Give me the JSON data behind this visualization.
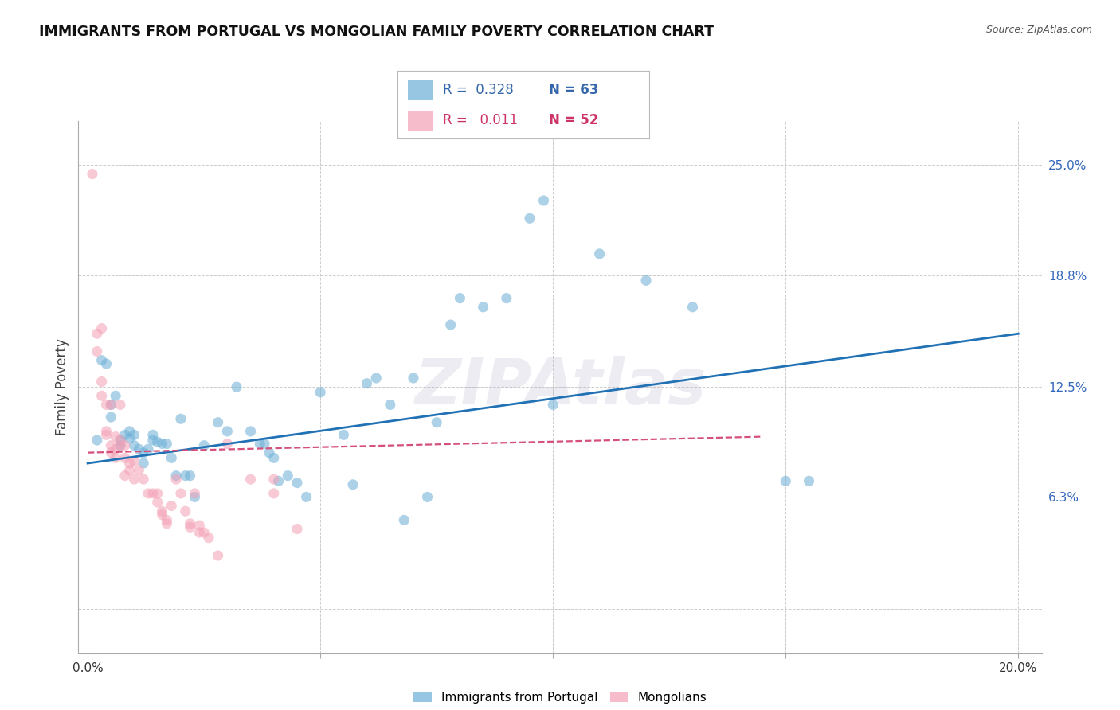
{
  "title": "IMMIGRANTS FROM PORTUGAL VS MONGOLIAN FAMILY POVERTY CORRELATION CHART",
  "source": "Source: ZipAtlas.com",
  "ylabel": "Family Poverty",
  "y_ticks": [
    0.0,
    0.063,
    0.125,
    0.188,
    0.25
  ],
  "y_tick_labels_right": [
    "",
    "6.3%",
    "12.5%",
    "18.8%",
    "25.0%"
  ],
  "x_ticks": [
    0.0,
    0.05,
    0.1,
    0.15,
    0.2
  ],
  "x_tick_labels": [
    "0.0%",
    "",
    "",
    "",
    "20.0%"
  ],
  "xlim": [
    -0.002,
    0.205
  ],
  "ylim": [
    -0.025,
    0.275
  ],
  "blue_label": "Immigrants from Portugal",
  "pink_label": "Mongolians",
  "blue_R": "0.328",
  "blue_N": "63",
  "pink_R": "0.011",
  "pink_N": "52",
  "blue_color": "#6baed6",
  "pink_color": "#f4a0b5",
  "blue_line_color": "#2171b5",
  "pink_line_color": "#d4507a",
  "legend_R_color_blue": "#3366aa",
  "legend_R_color_pink": "#cc3366",
  "blue_scatter": [
    [
      0.002,
      0.095
    ],
    [
      0.003,
      0.14
    ],
    [
      0.004,
      0.138
    ],
    [
      0.005,
      0.108
    ],
    [
      0.005,
      0.115
    ],
    [
      0.006,
      0.12
    ],
    [
      0.007,
      0.092
    ],
    [
      0.007,
      0.095
    ],
    [
      0.008,
      0.098
    ],
    [
      0.009,
      0.096
    ],
    [
      0.009,
      0.1
    ],
    [
      0.01,
      0.092
    ],
    [
      0.01,
      0.098
    ],
    [
      0.011,
      0.09
    ],
    [
      0.012,
      0.088
    ],
    [
      0.012,
      0.082
    ],
    [
      0.013,
      0.09
    ],
    [
      0.014,
      0.095
    ],
    [
      0.014,
      0.098
    ],
    [
      0.015,
      0.094
    ],
    [
      0.016,
      0.093
    ],
    [
      0.017,
      0.093
    ],
    [
      0.018,
      0.085
    ],
    [
      0.019,
      0.075
    ],
    [
      0.02,
      0.107
    ],
    [
      0.021,
      0.075
    ],
    [
      0.022,
      0.075
    ],
    [
      0.023,
      0.063
    ],
    [
      0.025,
      0.092
    ],
    [
      0.028,
      0.105
    ],
    [
      0.03,
      0.1
    ],
    [
      0.032,
      0.125
    ],
    [
      0.035,
      0.1
    ],
    [
      0.037,
      0.093
    ],
    [
      0.038,
      0.093
    ],
    [
      0.039,
      0.088
    ],
    [
      0.04,
      0.085
    ],
    [
      0.041,
      0.072
    ],
    [
      0.043,
      0.075
    ],
    [
      0.045,
      0.071
    ],
    [
      0.047,
      0.063
    ],
    [
      0.05,
      0.122
    ],
    [
      0.055,
      0.098
    ],
    [
      0.057,
      0.07
    ],
    [
      0.06,
      0.127
    ],
    [
      0.062,
      0.13
    ],
    [
      0.065,
      0.115
    ],
    [
      0.068,
      0.05
    ],
    [
      0.07,
      0.13
    ],
    [
      0.073,
      0.063
    ],
    [
      0.075,
      0.105
    ],
    [
      0.078,
      0.16
    ],
    [
      0.08,
      0.175
    ],
    [
      0.085,
      0.17
    ],
    [
      0.09,
      0.175
    ],
    [
      0.095,
      0.22
    ],
    [
      0.098,
      0.23
    ],
    [
      0.1,
      0.115
    ],
    [
      0.11,
      0.2
    ],
    [
      0.12,
      0.185
    ],
    [
      0.13,
      0.17
    ],
    [
      0.15,
      0.072
    ],
    [
      0.155,
      0.072
    ]
  ],
  "pink_scatter": [
    [
      0.001,
      0.245
    ],
    [
      0.002,
      0.155
    ],
    [
      0.002,
      0.145
    ],
    [
      0.003,
      0.158
    ],
    [
      0.003,
      0.128
    ],
    [
      0.003,
      0.12
    ],
    [
      0.004,
      0.115
    ],
    [
      0.004,
      0.1
    ],
    [
      0.004,
      0.098
    ],
    [
      0.005,
      0.115
    ],
    [
      0.005,
      0.092
    ],
    [
      0.005,
      0.088
    ],
    [
      0.006,
      0.097
    ],
    [
      0.006,
      0.09
    ],
    [
      0.006,
      0.085
    ],
    [
      0.007,
      0.095
    ],
    [
      0.007,
      0.092
    ],
    [
      0.007,
      0.115
    ],
    [
      0.008,
      0.092
    ],
    [
      0.008,
      0.085
    ],
    [
      0.008,
      0.075
    ],
    [
      0.009,
      0.082
    ],
    [
      0.009,
      0.078
    ],
    [
      0.01,
      0.073
    ],
    [
      0.01,
      0.083
    ],
    [
      0.011,
      0.078
    ],
    [
      0.012,
      0.073
    ],
    [
      0.013,
      0.065
    ],
    [
      0.014,
      0.065
    ],
    [
      0.015,
      0.065
    ],
    [
      0.015,
      0.06
    ],
    [
      0.016,
      0.055
    ],
    [
      0.016,
      0.053
    ],
    [
      0.017,
      0.05
    ],
    [
      0.017,
      0.048
    ],
    [
      0.018,
      0.058
    ],
    [
      0.019,
      0.073
    ],
    [
      0.02,
      0.065
    ],
    [
      0.021,
      0.055
    ],
    [
      0.022,
      0.048
    ],
    [
      0.022,
      0.046
    ],
    [
      0.023,
      0.065
    ],
    [
      0.024,
      0.047
    ],
    [
      0.024,
      0.043
    ],
    [
      0.025,
      0.043
    ],
    [
      0.026,
      0.04
    ],
    [
      0.028,
      0.03
    ],
    [
      0.03,
      0.093
    ],
    [
      0.035,
      0.073
    ],
    [
      0.04,
      0.073
    ],
    [
      0.04,
      0.065
    ],
    [
      0.045,
      0.045
    ]
  ],
  "blue_line_x": [
    0.0,
    0.2
  ],
  "blue_line_y": [
    0.082,
    0.155
  ],
  "pink_line_x": [
    0.0,
    0.145
  ],
  "pink_line_y": [
    0.088,
    0.097
  ],
  "marker_size": 90,
  "alpha": 0.55,
  "background_color": "#ffffff",
  "grid_color": "#cccccc",
  "watermark_color": "#9999bb",
  "watermark_alpha": 0.18
}
